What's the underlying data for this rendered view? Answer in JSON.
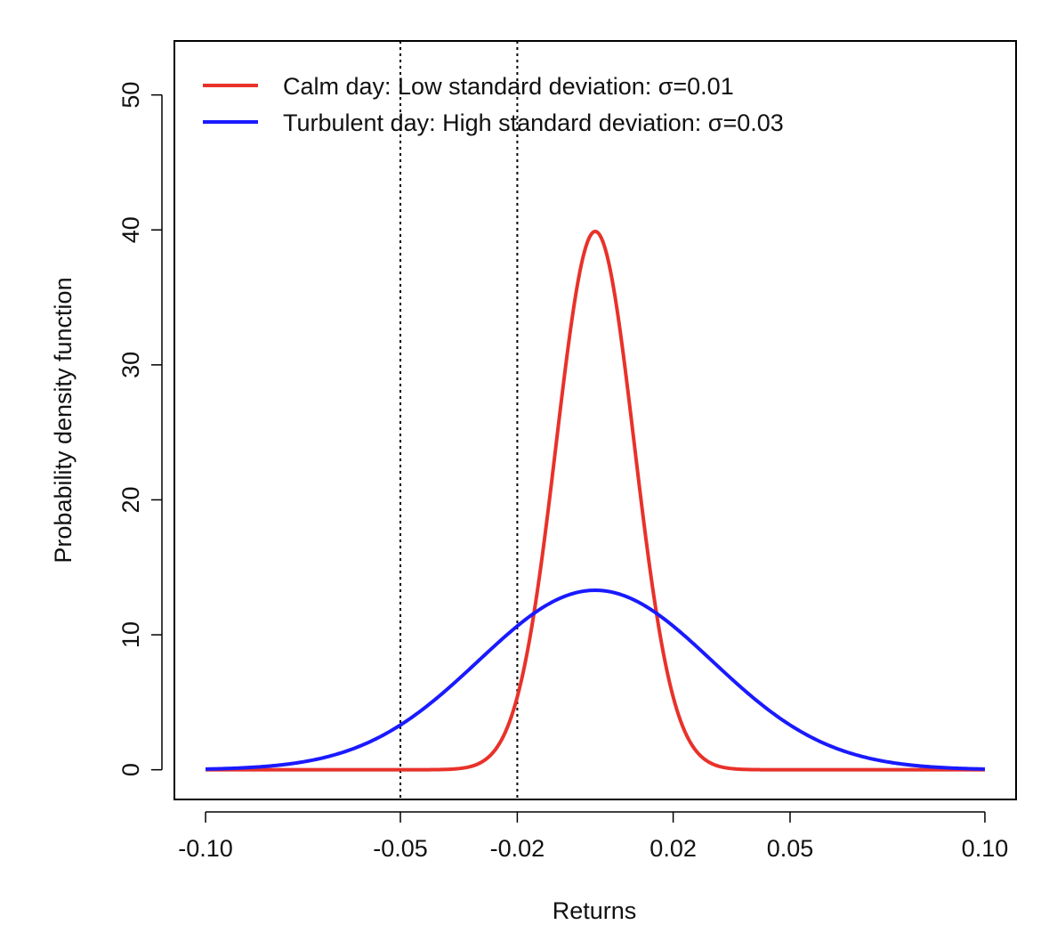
{
  "chart_data": {
    "type": "line",
    "title": "",
    "xlabel": "Returns",
    "ylabel": "Probability density function",
    "xlim": [
      -0.108,
      0.108
    ],
    "ylim": [
      -2.2,
      54.0
    ],
    "x_ticks": [
      {
        "value": -0.1,
        "label": "-0.10"
      },
      {
        "value": -0.05,
        "label": "-0.05"
      },
      {
        "value": -0.02,
        "label": "-0.02"
      },
      {
        "value": 0.02,
        "label": "0.02"
      },
      {
        "value": 0.05,
        "label": "0.05"
      },
      {
        "value": 0.1,
        "label": "0.10"
      }
    ],
    "y_ticks": [
      {
        "value": 0,
        "label": "0"
      },
      {
        "value": 10,
        "label": "10"
      },
      {
        "value": 20,
        "label": "20"
      },
      {
        "value": 30,
        "label": "30"
      },
      {
        "value": 40,
        "label": "40"
      },
      {
        "value": 50,
        "label": "50"
      }
    ],
    "grid": false,
    "legend_position": "top-left",
    "vertical_reference_lines": [
      {
        "x": -0.05,
        "style": "dotted",
        "color": "#000000"
      },
      {
        "x": -0.02,
        "style": "dotted",
        "color": "#000000"
      }
    ],
    "series": [
      {
        "name": "Calm day: Low standard deviation: σ=0.01",
        "color": "#e8322a",
        "sigma": 0.01,
        "points": [
          [
            -0.1,
            0.0
          ],
          [
            -0.035,
            0.01
          ],
          [
            -0.03,
            0.44
          ],
          [
            -0.025,
            1.75
          ],
          [
            -0.02,
            5.4
          ],
          [
            -0.015,
            12.95
          ],
          [
            -0.01,
            24.2
          ],
          [
            -0.005,
            35.21
          ],
          [
            0.0,
            39.89
          ],
          [
            0.005,
            35.21
          ],
          [
            0.01,
            24.2
          ],
          [
            0.015,
            12.95
          ],
          [
            0.02,
            5.4
          ],
          [
            0.025,
            1.75
          ],
          [
            0.03,
            0.44
          ],
          [
            0.035,
            0.01
          ],
          [
            0.1,
            0.0
          ]
        ]
      },
      {
        "name": "Turbulent day: High standard deviation: σ=0.03",
        "color": "#1a1aff",
        "sigma": 0.03,
        "points": [
          [
            -0.1,
            0.05
          ],
          [
            -0.09,
            0.15
          ],
          [
            -0.08,
            0.38
          ],
          [
            -0.07,
            0.88
          ],
          [
            -0.06,
            1.8
          ],
          [
            -0.05,
            3.32
          ],
          [
            -0.04,
            5.47
          ],
          [
            -0.03,
            8.07
          ],
          [
            -0.02,
            10.65
          ],
          [
            -0.01,
            12.58
          ],
          [
            0.0,
            13.3
          ],
          [
            0.01,
            12.58
          ],
          [
            0.02,
            10.65
          ],
          [
            0.03,
            8.07
          ],
          [
            0.04,
            5.47
          ],
          [
            0.05,
            3.32
          ],
          [
            0.06,
            1.8
          ],
          [
            0.07,
            0.88
          ],
          [
            0.08,
            0.38
          ],
          [
            0.09,
            0.15
          ],
          [
            0.1,
            0.05
          ]
        ]
      }
    ]
  }
}
